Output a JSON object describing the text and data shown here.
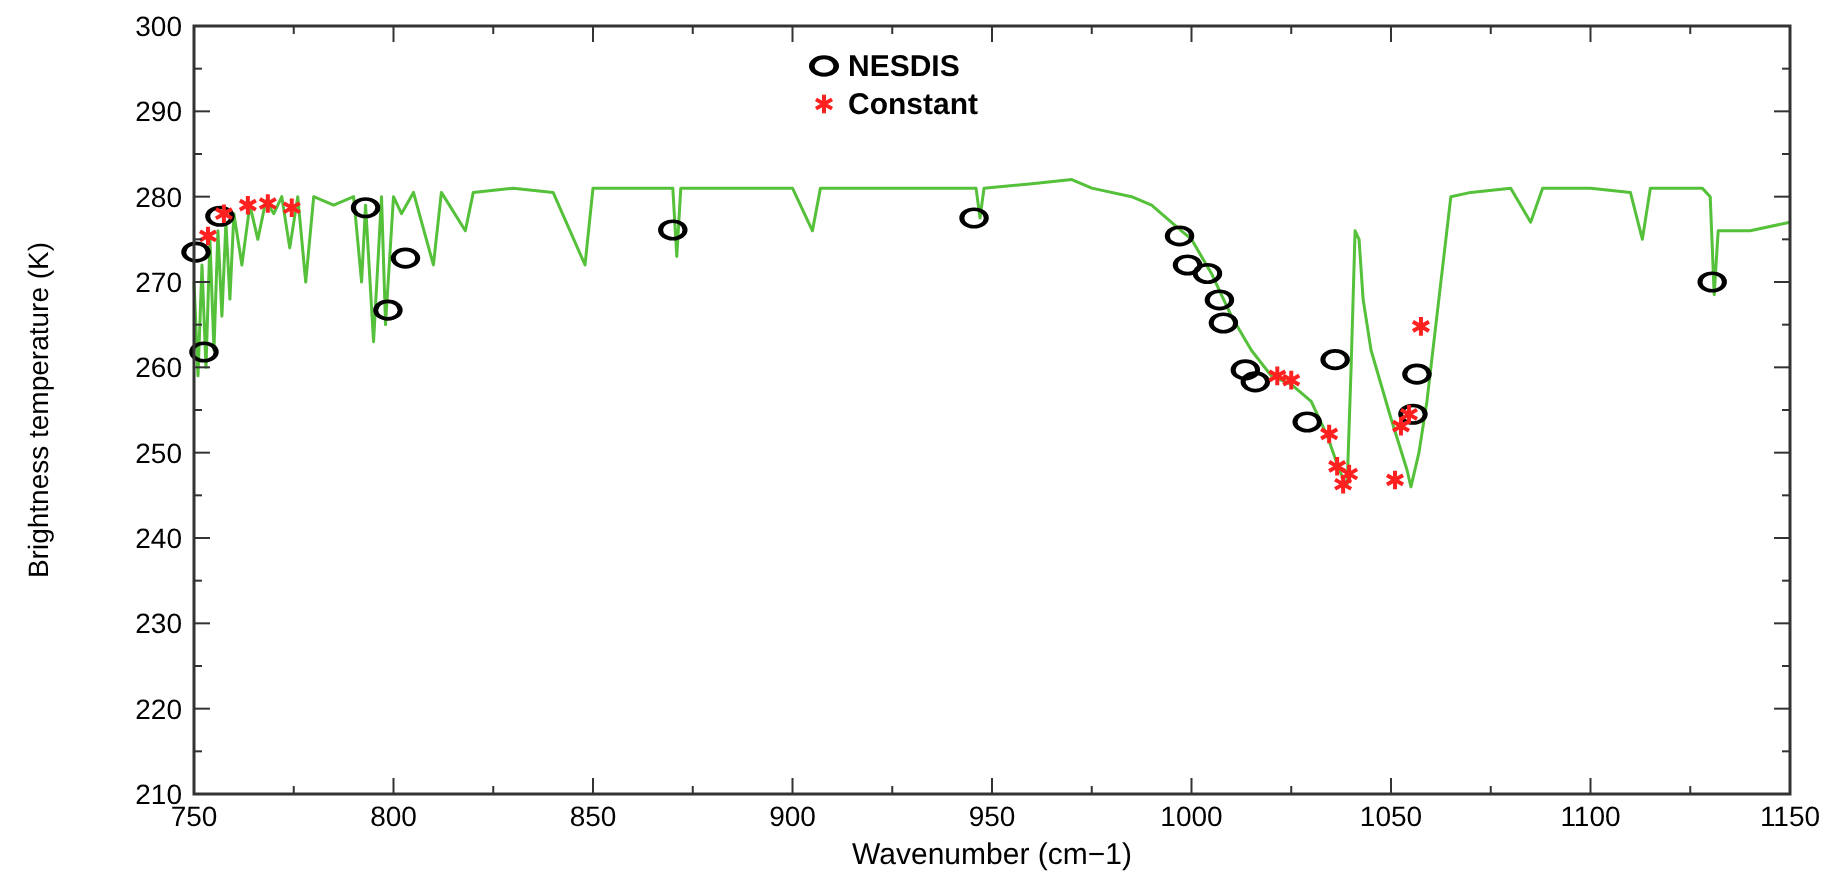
{
  "chart_data": {
    "type": "line",
    "xlabel": "Wavenumber (cm−1)",
    "ylabel": "Brightness temperature (K)",
    "xlim": [
      750,
      1150
    ],
    "ylim": [
      210,
      300
    ],
    "xticks": [
      750,
      800,
      850,
      900,
      950,
      1000,
      1050,
      1100,
      1150
    ],
    "yticks": [
      210,
      220,
      230,
      240,
      250,
      260,
      270,
      280,
      290,
      300
    ],
    "grid": false,
    "legend": "top",
    "series": [
      {
        "color": "#55c03a",
        "x": [
          750,
          751,
          752,
          753,
          754,
          755,
          756,
          757,
          758,
          759,
          760,
          762,
          764,
          766,
          768,
          770,
          772,
          774,
          776,
          778,
          780,
          785,
          790,
          792,
          793,
          795,
          797,
          798,
          800,
          802,
          805,
          810,
          812,
          818,
          820,
          830,
          840,
          848,
          850,
          860,
          870,
          871,
          872,
          880,
          900,
          905,
          907,
          920,
          946,
          947,
          948,
          960,
          970,
          975,
          985,
          990,
          995,
          1000,
          1005,
          1010,
          1015,
          1020,
          1025,
          1030,
          1034,
          1037,
          1039,
          1040,
          1041,
          1042,
          1043,
          1045,
          1050,
          1054,
          1055,
          1057,
          1059,
          1061,
          1063,
          1065,
          1070,
          1080,
          1085,
          1088,
          1100,
          1110,
          1113,
          1115,
          1125,
          1128,
          1130,
          1131,
          1132,
          1140,
          1150
        ],
        "values": [
          270,
          259,
          272,
          260,
          275,
          262,
          276,
          266,
          277,
          268,
          278,
          272,
          279,
          275,
          279.5,
          278,
          280,
          274,
          280,
          270,
          280,
          279,
          280,
          270,
          279,
          263,
          280,
          265,
          280,
          278,
          280.5,
          272,
          280.5,
          276,
          280.5,
          281,
          280.5,
          272,
          281,
          281,
          281,
          273,
          281,
          281,
          281,
          276,
          281,
          281,
          281,
          277.5,
          281,
          281.5,
          282,
          281,
          280,
          279,
          277,
          275,
          271,
          266,
          262,
          259,
          258,
          256,
          252,
          248,
          246,
          260,
          276,
          275,
          268,
          262,
          254,
          248,
          246,
          250,
          256,
          264,
          272,
          280,
          280.5,
          281,
          277,
          281,
          281,
          280.5,
          275,
          281,
          281,
          281,
          280,
          268.5,
          276,
          276,
          277
        ]
      },
      {
        "type": "scatter",
        "name": "NESDIS",
        "color": "#000000",
        "marker": "circle",
        "x": [
          750.5,
          752.5,
          756.5,
          793,
          798.6,
          803,
          870,
          945.5,
          997,
          999,
          1004,
          1007,
          1008,
          1013.5,
          1016,
          1029,
          1036,
          1055.5,
          1056.5,
          1130.5
        ],
        "values": [
          273.5,
          261.8,
          277.7,
          278.7,
          266.7,
          272.8,
          276.1,
          277.5,
          275.4,
          272,
          271,
          267.9,
          265.2,
          259.7,
          258.3,
          253.6,
          260.9,
          254.5,
          259.2,
          270
        ]
      },
      {
        "type": "scatter",
        "name": "Constant",
        "color": "#ff2020",
        "marker": "cross",
        "x": [
          753.5,
          757.5,
          763.5,
          768.5,
          774.5,
          1021.5,
          1025,
          1034.5,
          1036.5,
          1038,
          1039.5,
          1051,
          1052.5,
          1054.5,
          1057.5
        ],
        "values": [
          275.4,
          278,
          279,
          279.2,
          278.7,
          259,
          258.5,
          252.2,
          248.4,
          246.3,
          247.5,
          246.8,
          253.1,
          254.5,
          264.8
        ]
      }
    ]
  }
}
